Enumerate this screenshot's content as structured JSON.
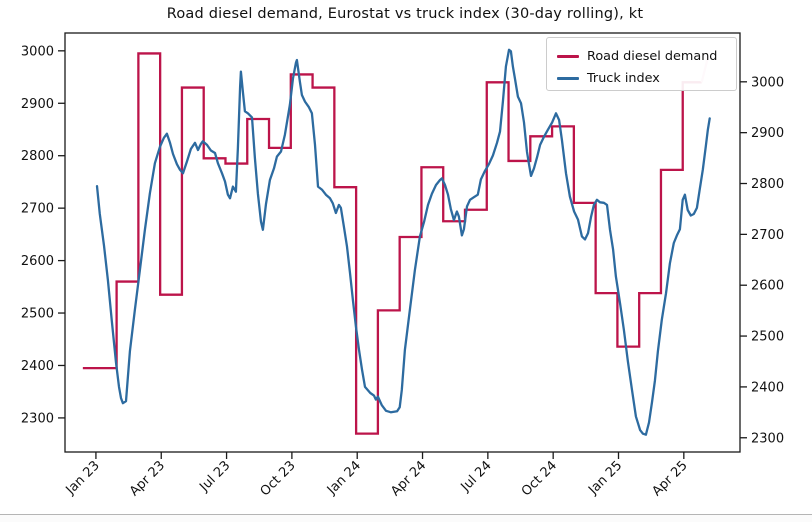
{
  "title": "Road diesel demand, Eurostat vs truck index (30-day rolling), kt",
  "legend": {
    "entries": [
      {
        "label": "Road diesel demand",
        "color_key": "red"
      },
      {
        "label": "Truck index",
        "color_key": "blue"
      }
    ]
  },
  "colors": {
    "red": "#bc144a",
    "red_faded": "#f2afc4",
    "blue": "#2d6ba0",
    "axis": "#1a1a1a",
    "text": "#111111",
    "legend_border": "#cccccc"
  },
  "chart_data": {
    "type": "line",
    "title": "Road diesel demand, Eurostat vs truck index (30-day rolling), kt",
    "unit": "kt",
    "grid": false,
    "legend_position": "upper right",
    "x_axis": {
      "tick_labels": [
        "Jan 23",
        "Apr 23",
        "Jul 23",
        "Oct 23",
        "Jan 24",
        "Apr 24",
        "Jul 24",
        "Oct 24",
        "Jan 25",
        "Apr 25"
      ],
      "tick_positions_months": [
        0,
        3,
        6,
        9,
        12,
        15,
        18,
        21,
        24,
        27
      ],
      "xlim_months": [
        -1.42,
        29.58
      ],
      "label_rotation_deg": 45
    },
    "y_axis_left": {
      "series": "Road diesel demand",
      "ticks": [
        2300,
        2400,
        2500,
        2600,
        2700,
        2800,
        2900,
        3000
      ],
      "ylim": [
        2235,
        3034
      ]
    },
    "y_axis_right": {
      "series": "Truck index",
      "ticks": [
        2300,
        2400,
        2500,
        2600,
        2700,
        2800,
        2900,
        3000
      ],
      "ylim": [
        2272,
        3096
      ]
    },
    "series": [
      {
        "name": "Road diesel demand",
        "axis": "left",
        "style": "step",
        "color_key": "red",
        "step_start_month": -0.6,
        "step_transition_offset": 0.95,
        "months": [
          "Jan 23",
          "Feb 23",
          "Mar 23",
          "Apr 23",
          "May 23",
          "Jun 23",
          "Jul 23",
          "Aug 23",
          "Sep 23",
          "Oct 23",
          "Nov 23",
          "Dec 23",
          "Jan 24",
          "Feb 24",
          "Mar 24",
          "Apr 24",
          "May 24",
          "Jun 24",
          "Jul 24",
          "Aug 24",
          "Sep 24",
          "Oct 24",
          "Nov 24",
          "Dec 24",
          "Jan 25",
          "Feb 25",
          "Mar 25",
          "Apr 25"
        ],
        "values": [
          2395,
          2560,
          2995,
          2535,
          2930,
          2795,
          2785,
          2870,
          2815,
          2955,
          2930,
          2740,
          2270,
          2505,
          2645,
          2778,
          2675,
          2697,
          2940,
          2790,
          2837,
          2856,
          2710,
          2538,
          2436,
          2538,
          2773,
          2940
        ],
        "faded_extension": {
          "from_month": 27.82,
          "to_month": 28.12,
          "from_value": 2940,
          "to_value": 2990
        }
      },
      {
        "name": "Truck index",
        "axis": "right",
        "style": "line",
        "color_key": "blue",
        "points_month_value": [
          [
            0.05,
            2795
          ],
          [
            0.18,
            2740
          ],
          [
            0.37,
            2678
          ],
          [
            0.55,
            2610
          ],
          [
            0.73,
            2530
          ],
          [
            0.92,
            2448
          ],
          [
            1.06,
            2400
          ],
          [
            1.15,
            2378
          ],
          [
            1.24,
            2368
          ],
          [
            1.38,
            2372
          ],
          [
            1.56,
            2470
          ],
          [
            1.79,
            2552
          ],
          [
            2.02,
            2630
          ],
          [
            2.25,
            2709
          ],
          [
            2.48,
            2781
          ],
          [
            2.71,
            2840
          ],
          [
            2.94,
            2872
          ],
          [
            3.12,
            2890
          ],
          [
            3.26,
            2898
          ],
          [
            3.4,
            2880
          ],
          [
            3.54,
            2858
          ],
          [
            3.72,
            2838
          ],
          [
            3.86,
            2827
          ],
          [
            4.0,
            2820
          ],
          [
            4.18,
            2843
          ],
          [
            4.36,
            2868
          ],
          [
            4.55,
            2880
          ],
          [
            4.69,
            2866
          ],
          [
            4.82,
            2878
          ],
          [
            4.91,
            2883
          ],
          [
            5.1,
            2876
          ],
          [
            5.28,
            2865
          ],
          [
            5.47,
            2860
          ],
          [
            5.6,
            2840
          ],
          [
            5.79,
            2820
          ],
          [
            5.93,
            2804
          ],
          [
            6.06,
            2778
          ],
          [
            6.16,
            2771
          ],
          [
            6.29,
            2794
          ],
          [
            6.43,
            2784
          ],
          [
            6.52,
            2870
          ],
          [
            6.62,
            2990
          ],
          [
            6.66,
            3020
          ],
          [
            6.75,
            2980
          ],
          [
            6.84,
            2942
          ],
          [
            6.98,
            2938
          ],
          [
            7.17,
            2930
          ],
          [
            7.3,
            2850
          ],
          [
            7.44,
            2780
          ],
          [
            7.58,
            2725
          ],
          [
            7.67,
            2709
          ],
          [
            7.81,
            2760
          ],
          [
            7.99,
            2807
          ],
          [
            8.18,
            2830
          ],
          [
            8.31,
            2853
          ],
          [
            8.5,
            2863
          ],
          [
            8.68,
            2896
          ],
          [
            8.91,
            2955
          ],
          [
            9.05,
            3007
          ],
          [
            9.19,
            3038
          ],
          [
            9.23,
            3043
          ],
          [
            9.37,
            3000
          ],
          [
            9.46,
            2974
          ],
          [
            9.6,
            2961
          ],
          [
            9.78,
            2950
          ],
          [
            9.92,
            2938
          ],
          [
            10.06,
            2876
          ],
          [
            10.2,
            2794
          ],
          [
            10.38,
            2788
          ],
          [
            10.56,
            2778
          ],
          [
            10.75,
            2771
          ],
          [
            10.88,
            2761
          ],
          [
            11.02,
            2742
          ],
          [
            11.16,
            2758
          ],
          [
            11.25,
            2752
          ],
          [
            11.39,
            2715
          ],
          [
            11.53,
            2676
          ],
          [
            11.67,
            2624
          ],
          [
            11.8,
            2571
          ],
          [
            11.94,
            2519
          ],
          [
            12.08,
            2473
          ],
          [
            12.22,
            2434
          ],
          [
            12.36,
            2400
          ],
          [
            12.6,
            2388
          ],
          [
            12.77,
            2383
          ],
          [
            12.86,
            2375
          ],
          [
            12.95,
            2381
          ],
          [
            13.13,
            2364
          ],
          [
            13.32,
            2353
          ],
          [
            13.55,
            2350
          ],
          [
            13.83,
            2352
          ],
          [
            13.95,
            2360
          ],
          [
            14.05,
            2394
          ],
          [
            14.19,
            2473
          ],
          [
            14.42,
            2552
          ],
          [
            14.65,
            2630
          ],
          [
            14.88,
            2696
          ],
          [
            15.07,
            2725
          ],
          [
            15.25,
            2758
          ],
          [
            15.43,
            2780
          ],
          [
            15.62,
            2797
          ],
          [
            15.8,
            2807
          ],
          [
            15.89,
            2810
          ],
          [
            16.03,
            2797
          ],
          [
            16.17,
            2778
          ],
          [
            16.3,
            2750
          ],
          [
            16.44,
            2728
          ],
          [
            16.58,
            2745
          ],
          [
            16.67,
            2735
          ],
          [
            16.81,
            2698
          ],
          [
            16.9,
            2710
          ],
          [
            17.04,
            2755
          ],
          [
            17.18,
            2768
          ],
          [
            17.36,
            2773
          ],
          [
            17.54,
            2778
          ],
          [
            17.68,
            2808
          ],
          [
            17.87,
            2825
          ],
          [
            18.05,
            2838
          ],
          [
            18.23,
            2855
          ],
          [
            18.42,
            2880
          ],
          [
            18.56,
            2902
          ],
          [
            18.69,
            2961
          ],
          [
            18.83,
            3030
          ],
          [
            18.97,
            3063
          ],
          [
            19.06,
            3060
          ],
          [
            19.15,
            3030
          ],
          [
            19.24,
            3007
          ],
          [
            19.38,
            2971
          ],
          [
            19.52,
            2958
          ],
          [
            19.66,
            2920
          ],
          [
            19.8,
            2862
          ],
          [
            19.89,
            2838
          ],
          [
            19.98,
            2815
          ],
          [
            20.12,
            2830
          ],
          [
            20.26,
            2852
          ],
          [
            20.4,
            2876
          ],
          [
            20.58,
            2892
          ],
          [
            20.76,
            2906
          ],
          [
            20.95,
            2920
          ],
          [
            21.13,
            2938
          ],
          [
            21.27,
            2925
          ],
          [
            21.4,
            2886
          ],
          [
            21.59,
            2820
          ],
          [
            21.77,
            2774
          ],
          [
            21.96,
            2745
          ],
          [
            22.14,
            2729
          ],
          [
            22.32,
            2696
          ],
          [
            22.46,
            2690
          ],
          [
            22.6,
            2702
          ],
          [
            22.74,
            2735
          ],
          [
            22.87,
            2758
          ],
          [
            23.01,
            2768
          ],
          [
            23.15,
            2763
          ],
          [
            23.33,
            2762
          ],
          [
            23.47,
            2758
          ],
          [
            23.61,
            2709
          ],
          [
            23.75,
            2670
          ],
          [
            23.88,
            2617
          ],
          [
            24.07,
            2565
          ],
          [
            24.25,
            2512
          ],
          [
            24.43,
            2450
          ],
          [
            24.62,
            2394
          ],
          [
            24.8,
            2342
          ],
          [
            24.99,
            2315
          ],
          [
            25.12,
            2308
          ],
          [
            25.26,
            2306
          ],
          [
            25.4,
            2330
          ],
          [
            25.54,
            2370
          ],
          [
            25.67,
            2412
          ],
          [
            25.81,
            2470
          ],
          [
            25.99,
            2532
          ],
          [
            26.18,
            2584
          ],
          [
            26.36,
            2643
          ],
          [
            26.54,
            2683
          ],
          [
            26.68,
            2698
          ],
          [
            26.82,
            2710
          ],
          [
            26.95,
            2768
          ],
          [
            27.05,
            2778
          ],
          [
            27.18,
            2748
          ],
          [
            27.32,
            2737
          ],
          [
            27.46,
            2740
          ],
          [
            27.6,
            2752
          ],
          [
            27.73,
            2788
          ],
          [
            27.87,
            2827
          ],
          [
            28.01,
            2873
          ],
          [
            28.1,
            2905
          ],
          [
            28.19,
            2928
          ]
        ]
      }
    ]
  }
}
